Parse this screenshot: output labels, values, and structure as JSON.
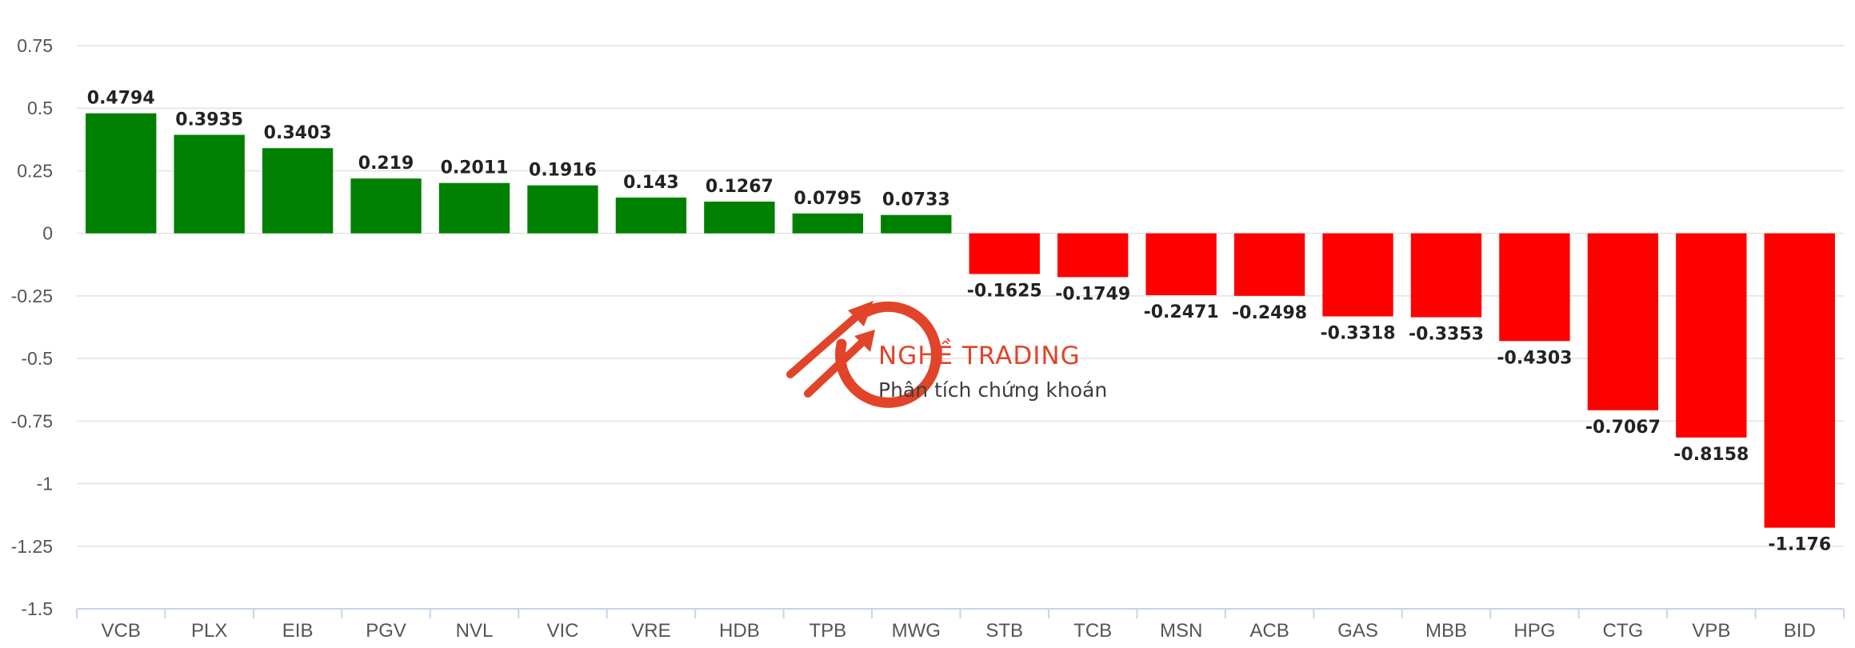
{
  "watermark": {
    "title": "NGHỀ TRADING",
    "subtitle": "Phân tích chứng khoán",
    "accent_color": "#e03a1e",
    "icon": "rising-arrows-circle-logo"
  },
  "chart_data": {
    "type": "bar",
    "title": "",
    "xlabel": "",
    "ylabel": "",
    "categories": [
      "VCB",
      "PLX",
      "EIB",
      "PGV",
      "NVL",
      "VIC",
      "VRE",
      "HDB",
      "TPB",
      "MWG",
      "STB",
      "TCB",
      "MSN",
      "ACB",
      "GAS",
      "MBB",
      "HPG",
      "CTG",
      "VPB",
      "BID"
    ],
    "values": [
      0.4794,
      0.3935,
      0.3403,
      0.219,
      0.2011,
      0.1916,
      0.143,
      0.1267,
      0.0795,
      0.0733,
      -0.1625,
      -0.1749,
      -0.2471,
      -0.2498,
      -0.3318,
      -0.3353,
      -0.4303,
      -0.7067,
      -0.8158,
      -1.176
    ],
    "data_labels": [
      "0.4794",
      "0.3935",
      "0.3403",
      "0.219",
      "0.2011",
      "0.1916",
      "0.143",
      "0.1267",
      "0.0795",
      "0.0733",
      "-0.1625",
      "-0.1749",
      "-0.2471",
      "-0.2498",
      "-0.3318",
      "-0.3353",
      "-0.4303",
      "-0.7067",
      "-0.8158",
      "-1.176"
    ],
    "ylim": [
      -1.5,
      0.75
    ],
    "yticks": [
      0.75,
      0.5,
      0.25,
      0,
      -0.25,
      -0.5,
      -0.75,
      -1,
      -1.25,
      -1.5
    ],
    "ytick_labels": [
      "0.75",
      "0.5",
      "0.25",
      "0",
      "-0.25",
      "-0.5",
      "-0.75",
      "-1",
      "-1.25",
      "-1.5"
    ],
    "grid": true,
    "legend": "none",
    "positive_color": "#008000",
    "negative_color": "#ff0000"
  }
}
